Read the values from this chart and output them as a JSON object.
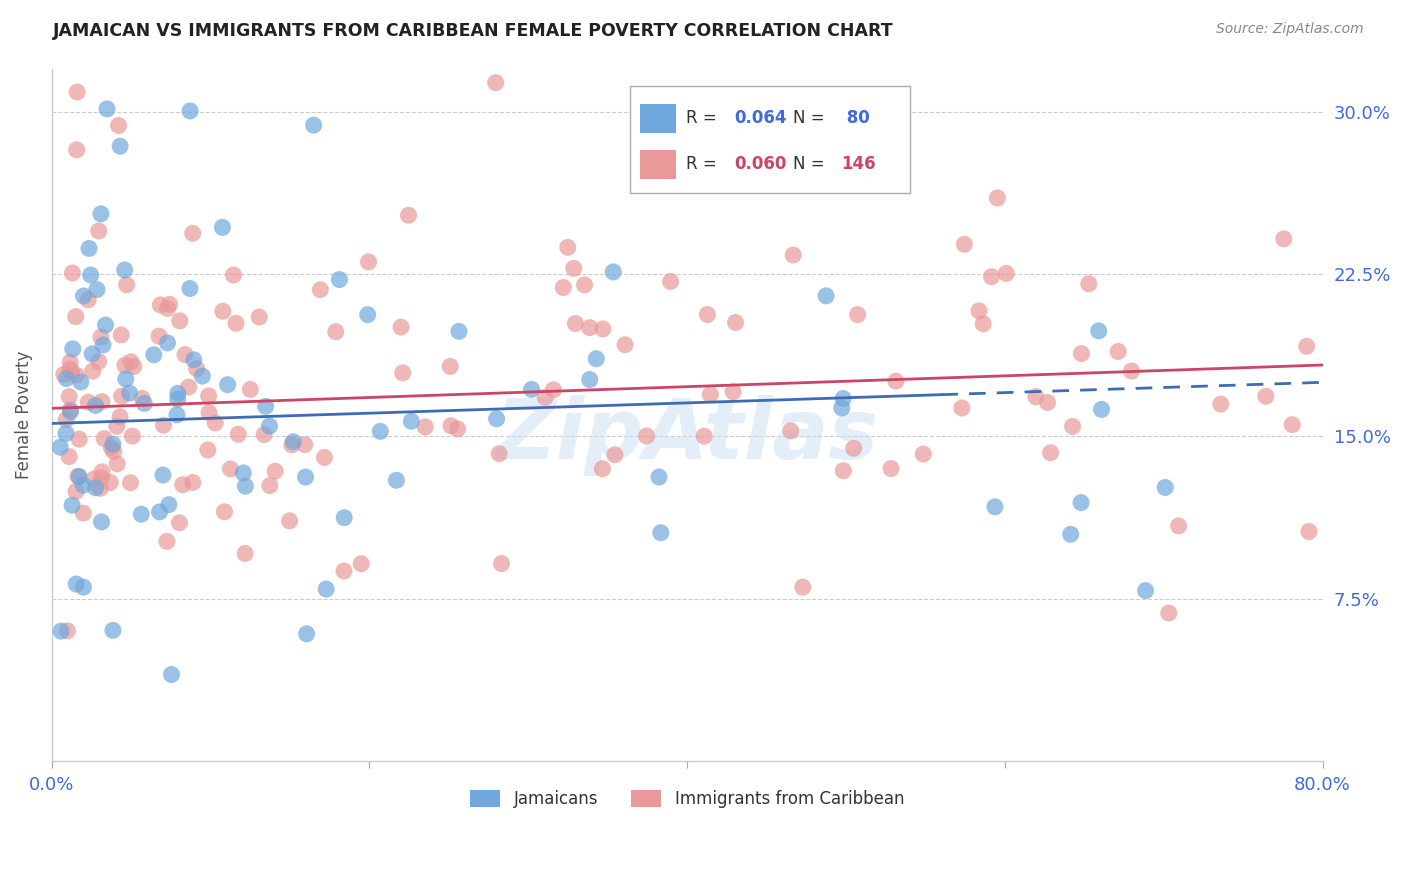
{
  "title": "JAMAICAN VS IMMIGRANTS FROM CARIBBEAN FEMALE POVERTY CORRELATION CHART",
  "source": "Source: ZipAtlas.com",
  "ylabel": "Female Poverty",
  "yticks": [
    0.0,
    0.075,
    0.15,
    0.225,
    0.3
  ],
  "ytick_labels": [
    "",
    "7.5%",
    "15.0%",
    "22.5%",
    "30.0%"
  ],
  "xticks": [
    0.0,
    0.2,
    0.4,
    0.6,
    0.8
  ],
  "xtick_labels": [
    "0.0%",
    "",
    "",
    "",
    "80.0%"
  ],
  "series1_color": "#6fa8dc",
  "series2_color": "#ea9999",
  "trend1_color": "#3d6bb5",
  "trend2_color": "#cc4466",
  "watermark": "ZipAtlas",
  "background_color": "#ffffff",
  "grid_color": "#cccccc",
  "axis_label_color": "#4169e1",
  "title_color": "#222222",
  "xlim": [
    0.0,
    0.8
  ],
  "ylim": [
    0.0,
    0.32
  ],
  "trend1_x": [
    0.0,
    0.8
  ],
  "trend1_y": [
    0.156,
    0.175
  ],
  "trend2_x": [
    0.0,
    0.8
  ],
  "trend2_y": [
    0.163,
    0.183
  ],
  "trend1_solid_end": 0.56,
  "trend1_dashed_start": 0.56
}
